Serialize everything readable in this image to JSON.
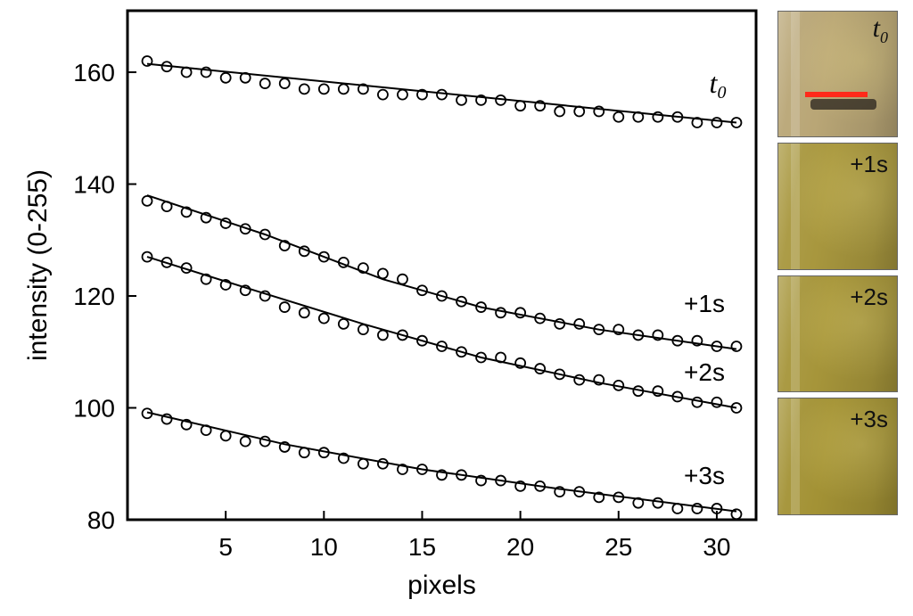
{
  "chart_data": {
    "type": "scatter",
    "xlabel": "pixels",
    "ylabel": "intensity (0-255)",
    "xlim": [
      0,
      32
    ],
    "ylim": [
      80,
      171
    ],
    "xticks": [
      5,
      10,
      15,
      20,
      25,
      30
    ],
    "yticks": [
      80,
      100,
      120,
      140,
      160
    ],
    "grid": false,
    "x": [
      1,
      2,
      3,
      4,
      5,
      6,
      7,
      8,
      9,
      10,
      11,
      12,
      13,
      14,
      15,
      16,
      17,
      18,
      19,
      20,
      21,
      22,
      23,
      24,
      25,
      26,
      27,
      28,
      29,
      30,
      31
    ],
    "series": [
      {
        "name": "t",
        "name_sub": "0",
        "points": [
          162,
          161,
          160,
          160,
          159,
          159,
          158,
          158,
          157,
          157,
          157,
          157,
          156,
          156,
          156,
          156,
          155,
          155,
          155,
          154,
          154,
          153,
          153,
          153,
          152,
          152,
          152,
          152,
          151,
          151,
          151
        ],
        "fit": [
          161.5,
          151
        ]
      },
      {
        "name": "+1s",
        "points": [
          137,
          136,
          135,
          134,
          133,
          132,
          131,
          129,
          128,
          127,
          126,
          125,
          124,
          123,
          121,
          120,
          119,
          118,
          117,
          117,
          116,
          115,
          115,
          114,
          114,
          113,
          113,
          112,
          112,
          111,
          111
        ],
        "fit_curve": [
          [
            1,
            138
          ],
          [
            7,
            131
          ],
          [
            13,
            123
          ],
          [
            18,
            118
          ],
          [
            24,
            114
          ],
          [
            31,
            110.5
          ]
        ]
      },
      {
        "name": "+2s",
        "points": [
          127,
          126,
          125,
          123,
          122,
          121,
          120,
          118,
          117,
          116,
          115,
          114,
          113,
          113,
          112,
          111,
          110,
          109,
          109,
          108,
          107,
          106,
          105,
          105,
          104,
          103,
          103,
          102,
          101,
          101,
          100
        ],
        "fit_curve": [
          [
            1,
            127
          ],
          [
            6,
            121.5
          ],
          [
            12,
            115
          ],
          [
            18,
            109
          ],
          [
            24,
            104.5
          ],
          [
            31,
            100
          ]
        ]
      },
      {
        "name": "+3s",
        "points": [
          99,
          98,
          97,
          96,
          95,
          94,
          94,
          93,
          92,
          92,
          91,
          90,
          90,
          89,
          89,
          88,
          88,
          87,
          87,
          86,
          86,
          85,
          85,
          84,
          84,
          83,
          83,
          82,
          82,
          82,
          81
        ],
        "fit_curve": [
          [
            1,
            99.2
          ],
          [
            8,
            93.5
          ],
          [
            15,
            89
          ],
          [
            22,
            85.5
          ],
          [
            31,
            81.5
          ]
        ]
      }
    ]
  },
  "thumbnails": [
    {
      "label": "t",
      "label_sub": "0",
      "tint": "#b9a676",
      "marker_color": "#ff2a1a"
    },
    {
      "label": "+1s",
      "tint": "#a8973e"
    },
    {
      "label": "+2s",
      "tint": "#a6953a"
    },
    {
      "label": "+3s",
      "tint": "#a39235"
    }
  ]
}
